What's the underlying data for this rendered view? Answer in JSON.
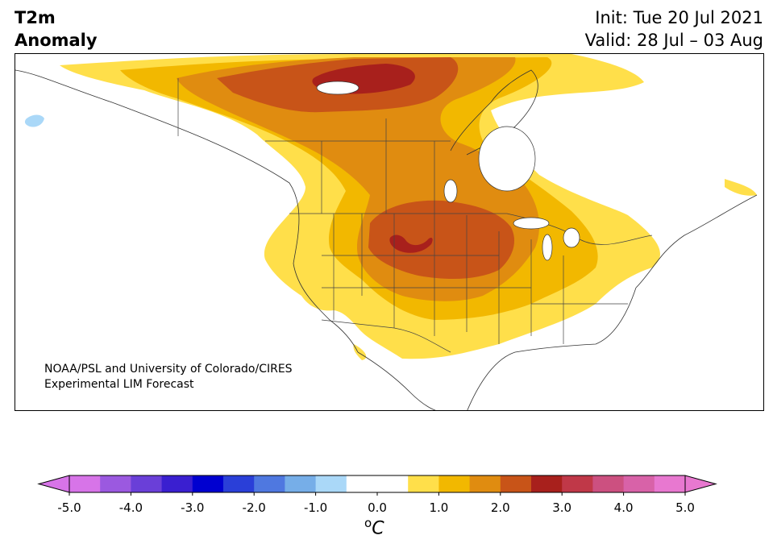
{
  "title": {
    "left_line1": "T2m",
    "left_line2": "Anomaly",
    "init": "Init: Tue 20 Jul 2021",
    "valid": "Valid: 28 Jul – 03 Aug"
  },
  "credit": {
    "line1": "NOAA/PSL and University of Colorado/CIRES",
    "line2": "Experimental LIM Forecast"
  },
  "colorbar": {
    "unit_super": "o",
    "unit_main": "C",
    "ticks": [
      "-5.0",
      "-4.0",
      "-3.0",
      "-2.0",
      "-1.0",
      "0.0",
      "1.0",
      "2.0",
      "3.0",
      "4.0",
      "5.0"
    ],
    "colors": [
      "#d774e8",
      "#9b59e0",
      "#6a3fd8",
      "#3a1fd0",
      "#0000d0",
      "#2a3fd8",
      "#4f78e0",
      "#76aee8",
      "#aad8f8",
      "#ffffff",
      "#ffffff",
      "#ffdf4a",
      "#f2b800",
      "#e08c10",
      "#c85418",
      "#a8201c",
      "#c03848",
      "#cc5080",
      "#d862a8",
      "#e878d0"
    ],
    "under_color": "#d774e8",
    "over_color": "#e878d0"
  },
  "anomaly_levels": {
    "light_yellow": "#ffdf4a",
    "yellow": "#f2b800",
    "orange": "#e08c10",
    "dark_orange": "#c85418",
    "red": "#a8201c",
    "light_blue": "#aad8f8"
  }
}
